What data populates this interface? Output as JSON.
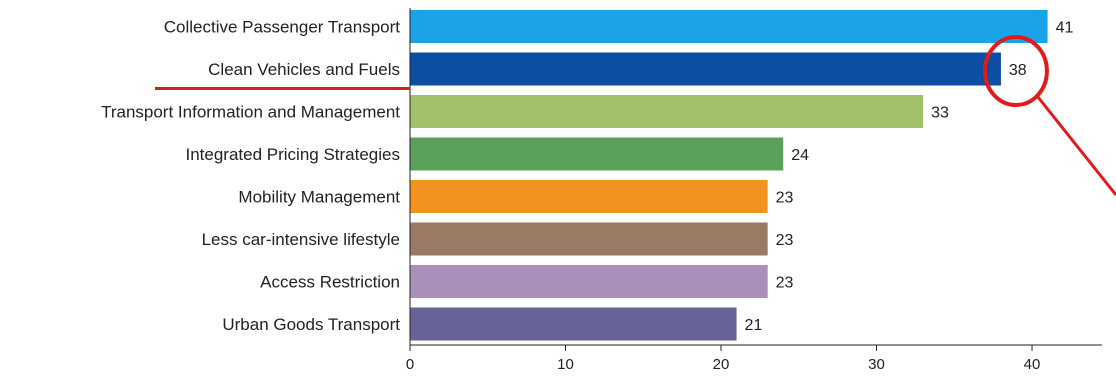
{
  "chart_data": {
    "type": "bar",
    "orientation": "horizontal",
    "categories": [
      "Collective Passenger Transport",
      "Clean Vehicles and Fuels",
      "Transport Information and Management",
      "Integrated Pricing Strategies",
      "Mobility Management",
      "Less car-intensive lifestyle",
      "Access Restriction",
      "Urban Goods Transport"
    ],
    "values": [
      41,
      38,
      33,
      24,
      23,
      23,
      23,
      21
    ],
    "value_labels": [
      "41",
      "38",
      "33",
      "24",
      "23",
      "23",
      "23",
      "21"
    ],
    "colors": [
      "#1aa3e8",
      "#0b4ea2",
      "#a2c06a",
      "#5aa05a",
      "#f29320",
      "#9a7a64",
      "#a890b8",
      "#686396"
    ],
    "xticks": [
      0,
      10,
      20,
      30,
      40
    ],
    "xtick_labels": [
      "0",
      "10",
      "20",
      "30",
      "40"
    ],
    "xlim": [
      0,
      44.5
    ],
    "grid": false,
    "legend": "none",
    "annotation": {
      "underline_category": "Clean Vehicles and Fuels",
      "circled_value": "38",
      "color": "#e01b1b"
    }
  }
}
